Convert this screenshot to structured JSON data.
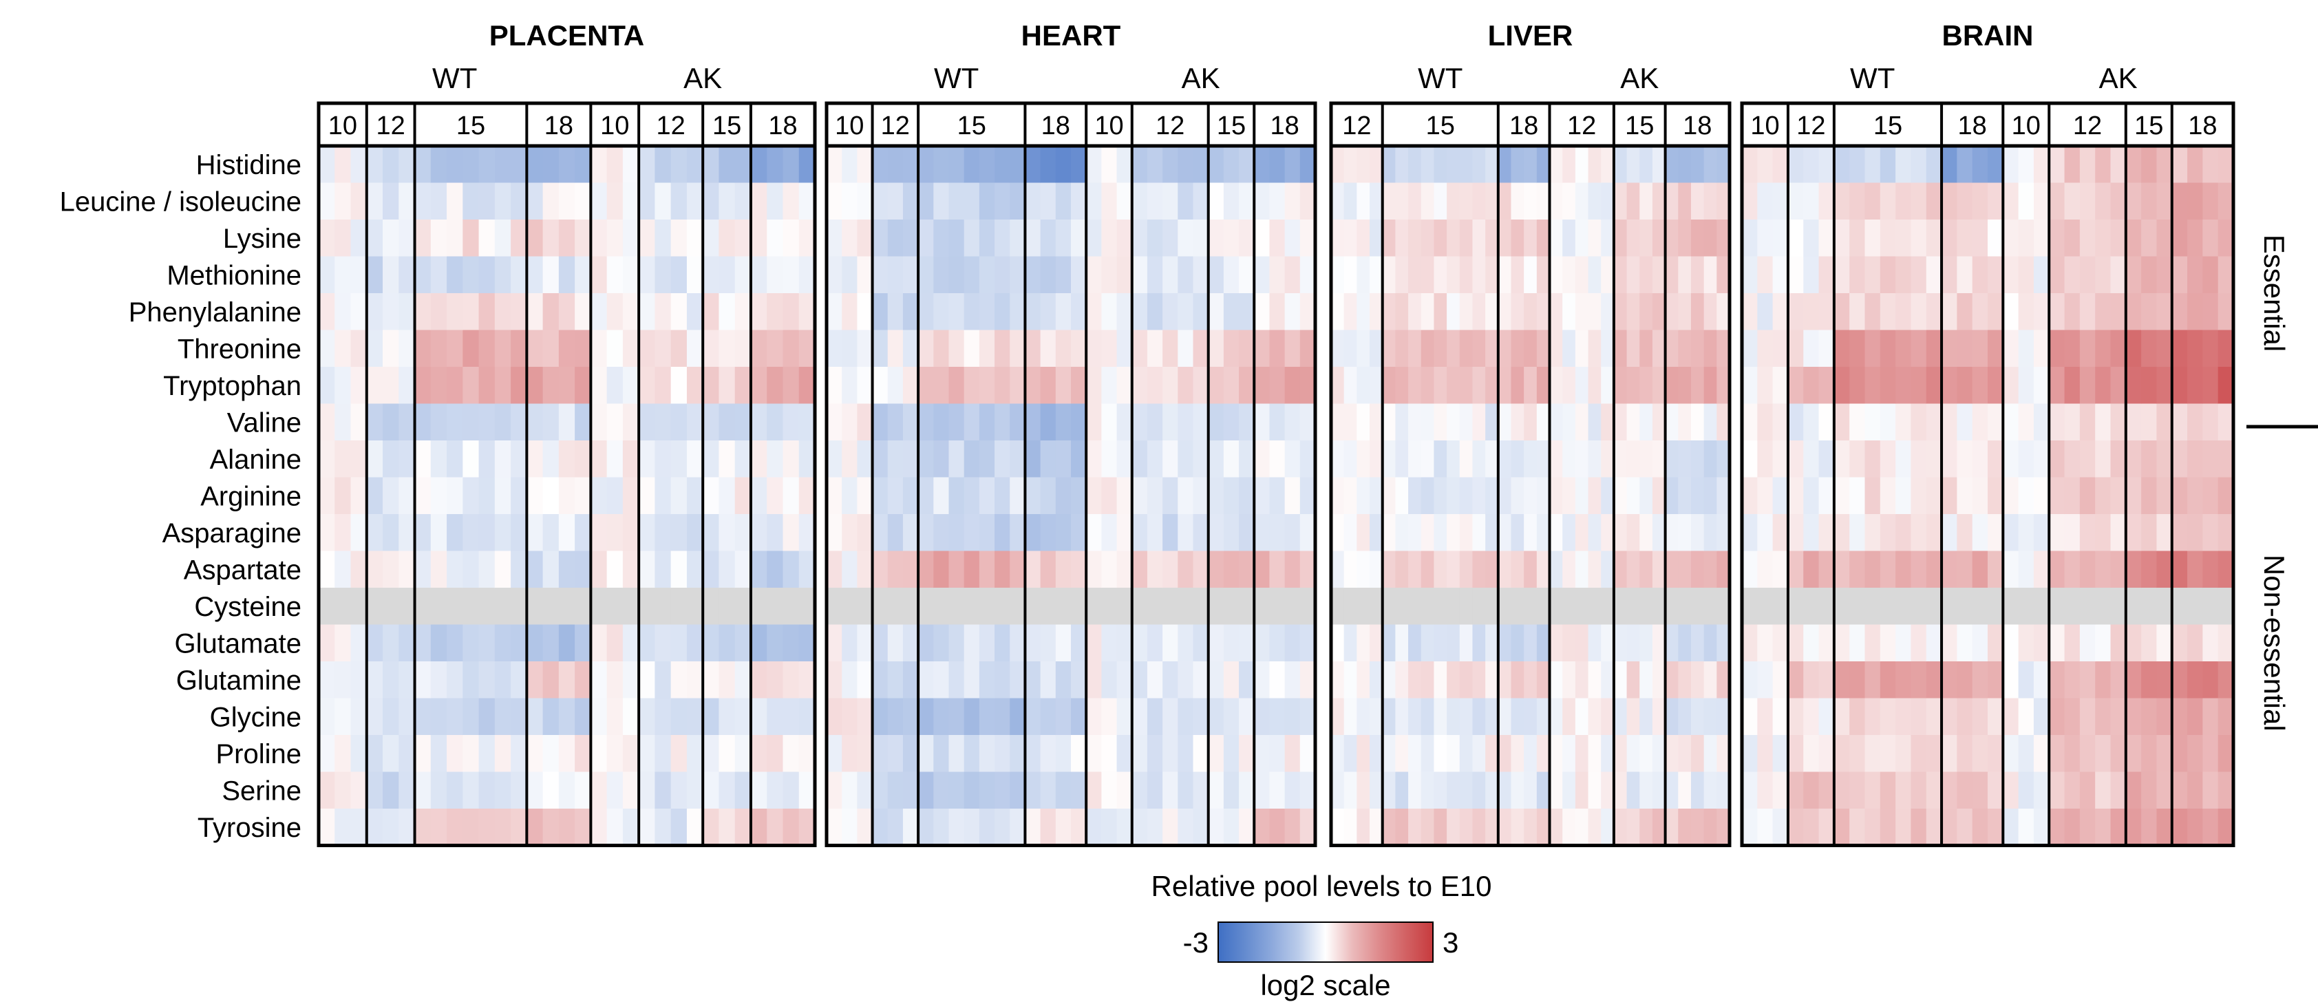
{
  "chart_data": {
    "type": "heatmap",
    "rows": [
      "Histidine",
      "Leucine / isoleucine",
      "Lysine",
      "Methionine",
      "Phenylalanine",
      "Threonine",
      "Tryptophan",
      "Valine",
      "Alanine",
      "Arginine",
      "Asparagine",
      "Aspartate",
      "Cysteine",
      "Glutamate",
      "Glutamine",
      "Glycine",
      "Proline",
      "Serine",
      "Tyrosine"
    ],
    "row_groups": [
      {
        "label": "Essential",
        "rows": [
          "Histidine",
          "Leucine / isoleucine",
          "Lysine",
          "Methionine",
          "Phenylalanine",
          "Threonine",
          "Tryptophan",
          "Valine"
        ]
      },
      {
        "label": "Non-essential",
        "rows": [
          "Alanine",
          "Arginine",
          "Asparagine",
          "Aspartate",
          "Cysteine",
          "Glutamate",
          "Glutamine",
          "Glycine",
          "Proline",
          "Serine",
          "Tyrosine"
        ]
      }
    ],
    "missing_rows": [
      "Cysteine"
    ],
    "panels": [
      {
        "title": "PLACENTA",
        "groups": [
          {
            "genotype": "WT",
            "stages": [
              {
                "label": "10",
                "n": 3
              },
              {
                "label": "12",
                "n": 3
              },
              {
                "label": "15",
                "n": 7
              },
              {
                "label": "18",
                "n": 4
              }
            ]
          },
          {
            "genotype": "AK",
            "stages": [
              {
                "label": "10",
                "n": 3
              },
              {
                "label": "12",
                "n": 4
              },
              {
                "label": "15",
                "n": 3
              },
              {
                "label": "18",
                "n": 4
              }
            ]
          }
        ],
        "levels": {
          "Histidine": [
            0.0,
            -0.4,
            -0.8,
            -1.3,
            0.0,
            -0.6,
            -0.9,
            -1.5
          ],
          "Leucine / isoleucine": [
            0.0,
            -0.3,
            -0.2,
            -0.1,
            0.0,
            -0.2,
            -0.2,
            0.0
          ],
          "Lysine": [
            0.0,
            -0.2,
            0.2,
            0.4,
            0.0,
            -0.1,
            0.0,
            0.2
          ],
          "Methionine": [
            0.0,
            -0.4,
            -0.4,
            -0.3,
            0.0,
            -0.3,
            -0.3,
            -0.2
          ],
          "Phenylalanine": [
            0.0,
            -0.2,
            0.3,
            0.3,
            0.0,
            -0.1,
            0.2,
            0.2
          ],
          "Threonine": [
            0.0,
            0.0,
            0.9,
            0.8,
            0.0,
            0.2,
            0.3,
            0.6
          ],
          "Tryptophan": [
            0.0,
            0.1,
            1.0,
            1.1,
            0.0,
            0.3,
            0.4,
            0.9
          ],
          "Valine": [
            0.0,
            -0.7,
            -0.5,
            -0.4,
            0.0,
            -0.3,
            -0.4,
            -0.3
          ],
          "Alanine": [
            0.0,
            -0.3,
            -0.2,
            0.0,
            0.0,
            -0.1,
            -0.1,
            0.0
          ],
          "Arginine": [
            0.0,
            -0.2,
            -0.1,
            0.0,
            0.0,
            -0.1,
            0.0,
            0.1
          ],
          "Asparagine": [
            0.0,
            -0.4,
            -0.3,
            -0.2,
            0.0,
            -0.3,
            -0.3,
            -0.2
          ],
          "Aspartate": [
            0.0,
            0.3,
            -0.1,
            -0.5,
            0.0,
            -0.1,
            -0.3,
            -0.6
          ],
          "Cysteine": [
            null,
            null,
            null,
            null,
            null,
            null,
            null,
            null
          ],
          "Glutamate": [
            0.0,
            -0.3,
            -0.7,
            -0.9,
            0.0,
            -0.4,
            -0.6,
            -1.0
          ],
          "Glutamine": [
            0.0,
            -0.2,
            -0.2,
            0.5,
            0.0,
            -0.1,
            0.0,
            0.2
          ],
          "Glycine": [
            0.0,
            -0.4,
            -0.6,
            -0.5,
            0.0,
            -0.3,
            -0.4,
            -0.3
          ],
          "Proline": [
            0.0,
            -0.2,
            -0.1,
            0.1,
            0.0,
            -0.1,
            0.0,
            0.1
          ],
          "Serine": [
            0.0,
            -0.5,
            -0.3,
            -0.2,
            0.0,
            -0.3,
            -0.2,
            -0.1
          ],
          "Tyrosine": [
            0.0,
            -0.3,
            0.3,
            0.6,
            0.0,
            -0.2,
            0.2,
            0.5
          ]
        }
      },
      {
        "title": "HEART",
        "groups": [
          {
            "genotype": "WT",
            "stages": [
              {
                "label": "10",
                "n": 3
              },
              {
                "label": "12",
                "n": 3
              },
              {
                "label": "15",
                "n": 7
              },
              {
                "label": "18",
                "n": 4
              }
            ]
          },
          {
            "genotype": "AK",
            "stages": [
              {
                "label": "10",
                "n": 3
              },
              {
                "label": "12",
                "n": 5
              },
              {
                "label": "15",
                "n": 3
              },
              {
                "label": "18",
                "n": 4
              }
            ]
          }
        ],
        "levels": {
          "Histidine": [
            0.1,
            -1.0,
            -1.3,
            -2.2,
            0.0,
            -0.8,
            -0.8,
            -1.3
          ],
          "Leucine / isoleucine": [
            0.0,
            -0.5,
            -0.6,
            -0.5,
            0.0,
            -0.3,
            -0.2,
            0.0
          ],
          "Lysine": [
            0.0,
            -0.6,
            -0.5,
            -0.3,
            0.0,
            -0.3,
            -0.1,
            0.1
          ],
          "Methionine": [
            0.0,
            -0.5,
            -0.6,
            -0.5,
            0.0,
            -0.3,
            -0.2,
            0.0
          ],
          "Phenylalanine": [
            0.0,
            -0.6,
            -0.5,
            -0.3,
            0.0,
            -0.3,
            -0.2,
            0.1
          ],
          "Threonine": [
            0.0,
            -0.2,
            0.3,
            0.2,
            0.0,
            0.2,
            0.4,
            0.8
          ],
          "Tryptophan": [
            0.0,
            0.0,
            0.7,
            0.6,
            0.0,
            0.3,
            0.6,
            1.2
          ],
          "Valine": [
            0.0,
            -0.8,
            -0.9,
            -1.2,
            0.0,
            -0.4,
            -0.5,
            -0.3
          ],
          "Alanine": [
            0.0,
            -0.5,
            -0.6,
            -0.9,
            0.0,
            -0.3,
            -0.3,
            -0.1
          ],
          "Arginine": [
            0.0,
            -0.3,
            -0.4,
            -0.6,
            0.0,
            -0.2,
            -0.2,
            -0.1
          ],
          "Asparagine": [
            0.0,
            -0.5,
            -0.7,
            -0.8,
            0.0,
            -0.4,
            -0.4,
            -0.3
          ],
          "Aspartate": [
            0.0,
            0.4,
            1.0,
            0.4,
            0.0,
            0.5,
            0.9,
            0.8
          ],
          "Cysteine": [
            null,
            null,
            null,
            null,
            null,
            null,
            null,
            null
          ],
          "Glutamate": [
            0.0,
            -0.3,
            -0.4,
            -0.2,
            0.0,
            -0.2,
            -0.2,
            -0.4
          ],
          "Glutamine": [
            0.0,
            -0.5,
            -0.4,
            -0.3,
            0.0,
            -0.2,
            -0.2,
            0.0
          ],
          "Glycine": [
            0.0,
            -0.7,
            -1.0,
            -0.6,
            0.0,
            -0.4,
            -0.3,
            -0.2
          ],
          "Proline": [
            0.0,
            -0.4,
            -0.4,
            -0.2,
            0.0,
            -0.2,
            -0.1,
            0.0
          ],
          "Serine": [
            0.0,
            -0.6,
            -0.8,
            -0.5,
            0.0,
            -0.3,
            -0.2,
            -0.1
          ],
          "Tyrosine": [
            0.0,
            -0.3,
            -0.2,
            0.0,
            0.0,
            -0.1,
            0.1,
            0.6
          ]
        }
      },
      {
        "title": "LIVER",
        "groups": [
          {
            "genotype": "WT",
            "stages": [
              {
                "label": "12",
                "n": 4
              },
              {
                "label": "15",
                "n": 9
              },
              {
                "label": "18",
                "n": 4
              }
            ]
          },
          {
            "genotype": "AK",
            "stages": [
              {
                "label": "12",
                "n": 5
              },
              {
                "label": "15",
                "n": 4
              },
              {
                "label": "18",
                "n": 5
              }
            ]
          }
        ],
        "levels": {
          "Histidine": [
            0.0,
            -0.5,
            -1.2,
            0.0,
            -0.3,
            -1.0
          ],
          "Leucine / isoleucine": [
            0.0,
            0.1,
            0.2,
            0.0,
            0.3,
            0.4
          ],
          "Lysine": [
            0.0,
            0.3,
            0.6,
            0.0,
            0.4,
            0.7
          ],
          "Methionine": [
            0.0,
            0.1,
            0.2,
            0.0,
            0.3,
            0.4
          ],
          "Phenylalanine": [
            0.0,
            0.2,
            0.3,
            0.0,
            0.4,
            0.4
          ],
          "Threonine": [
            0.0,
            0.6,
            0.7,
            0.0,
            0.6,
            0.8
          ],
          "Tryptophan": [
            0.0,
            0.7,
            0.8,
            0.0,
            0.7,
            0.9
          ],
          "Valine": [
            0.0,
            -0.1,
            0.0,
            0.0,
            0.1,
            0.1
          ],
          "Alanine": [
            0.0,
            -0.2,
            -0.4,
            0.0,
            -0.1,
            -0.3
          ],
          "Arginine": [
            0.0,
            -0.2,
            -0.3,
            0.0,
            0.0,
            -0.4
          ],
          "Asparagine": [
            0.0,
            -0.1,
            -0.2,
            0.0,
            0.0,
            -0.1
          ],
          "Aspartate": [
            0.0,
            0.5,
            0.4,
            0.0,
            0.5,
            0.7
          ],
          "Cysteine": [
            null,
            null,
            null,
            null,
            null,
            null
          ],
          "Glutamate": [
            0.0,
            -0.3,
            -0.7,
            0.0,
            -0.1,
            -0.5
          ],
          "Glutamine": [
            0.0,
            0.2,
            0.4,
            0.0,
            0.2,
            0.3
          ],
          "Glycine": [
            0.0,
            -0.2,
            -0.3,
            0.0,
            -0.1,
            -0.4
          ],
          "Proline": [
            0.0,
            0.0,
            0.1,
            0.0,
            0.1,
            0.1
          ],
          "Serine": [
            0.0,
            -0.3,
            -0.3,
            0.0,
            -0.1,
            -0.2
          ],
          "Tyrosine": [
            0.0,
            0.5,
            0.5,
            0.0,
            0.5,
            0.6
          ]
        }
      },
      {
        "title": "BRAIN",
        "groups": [
          {
            "genotype": "WT",
            "stages": [
              {
                "label": "10",
                "n": 3
              },
              {
                "label": "12",
                "n": 3
              },
              {
                "label": "15",
                "n": 7
              },
              {
                "label": "18",
                "n": 4
              }
            ]
          },
          {
            "genotype": "AK",
            "stages": [
              {
                "label": "10",
                "n": 3
              },
              {
                "label": "12",
                "n": 5
              },
              {
                "label": "15",
                "n": 3
              },
              {
                "label": "18",
                "n": 4
              }
            ]
          }
        ],
        "levels": {
          "Histidine": [
            0.1,
            -0.3,
            -0.5,
            -1.6,
            0.0,
            0.5,
            0.8,
            0.6
          ],
          "Leucine / isoleucine": [
            0.0,
            0.0,
            0.4,
            0.3,
            0.0,
            0.5,
            0.7,
            1.0
          ],
          "Lysine": [
            0.0,
            0.1,
            0.3,
            0.3,
            0.0,
            0.5,
            0.8,
            1.0
          ],
          "Methionine": [
            0.0,
            0.0,
            0.3,
            0.2,
            0.0,
            0.4,
            0.7,
            0.9
          ],
          "Phenylalanine": [
            0.0,
            0.1,
            0.4,
            0.3,
            0.0,
            0.5,
            0.7,
            0.9
          ],
          "Threonine": [
            0.0,
            0.2,
            1.3,
            1.0,
            0.0,
            1.2,
            1.8,
            2.0
          ],
          "Tryptophan": [
            0.0,
            0.8,
            1.5,
            1.3,
            0.0,
            1.4,
            2.0,
            2.2
          ],
          "Valine": [
            0.0,
            -0.1,
            0.1,
            0.1,
            0.0,
            0.3,
            0.4,
            0.4
          ],
          "Alanine": [
            0.0,
            0.0,
            0.2,
            0.2,
            0.0,
            0.5,
            0.7,
            0.7
          ],
          "Arginine": [
            0.0,
            0.0,
            0.2,
            0.3,
            0.0,
            0.5,
            0.6,
            0.8
          ],
          "Asparagine": [
            0.0,
            0.0,
            0.1,
            0.1,
            0.0,
            0.2,
            0.3,
            0.4
          ],
          "Aspartate": [
            0.0,
            0.8,
            0.8,
            0.9,
            0.0,
            0.8,
            1.5,
            1.6
          ],
          "Cysteine": [
            null,
            null,
            null,
            null,
            null,
            null,
            null,
            null
          ],
          "Glutamate": [
            0.0,
            0.1,
            0.1,
            0.1,
            0.0,
            0.2,
            0.3,
            0.4
          ],
          "Glutamine": [
            0.0,
            0.6,
            1.1,
            1.0,
            0.0,
            0.9,
            1.5,
            1.6
          ],
          "Glycine": [
            0.0,
            0.1,
            0.3,
            0.4,
            0.0,
            0.6,
            0.8,
            0.9
          ],
          "Proline": [
            0.0,
            0.2,
            0.3,
            0.4,
            0.0,
            0.6,
            0.9,
            0.9
          ],
          "Serine": [
            0.0,
            0.6,
            0.5,
            0.5,
            0.0,
            0.6,
            0.8,
            0.9
          ],
          "Tyrosine": [
            0.0,
            0.5,
            0.6,
            0.6,
            0.0,
            0.8,
            1.1,
            1.2
          ]
        }
      }
    ],
    "colorbar": {
      "title": "Relative pool levels to E10",
      "min_label": "-3",
      "max_label": "3",
      "scale_label": "log2 scale",
      "min": -3,
      "max": 3
    },
    "colors": {
      "low": "#3f6fc4",
      "mid": "#ffffff",
      "high": "#c73b3e",
      "missing": "#d9d9d9"
    }
  }
}
